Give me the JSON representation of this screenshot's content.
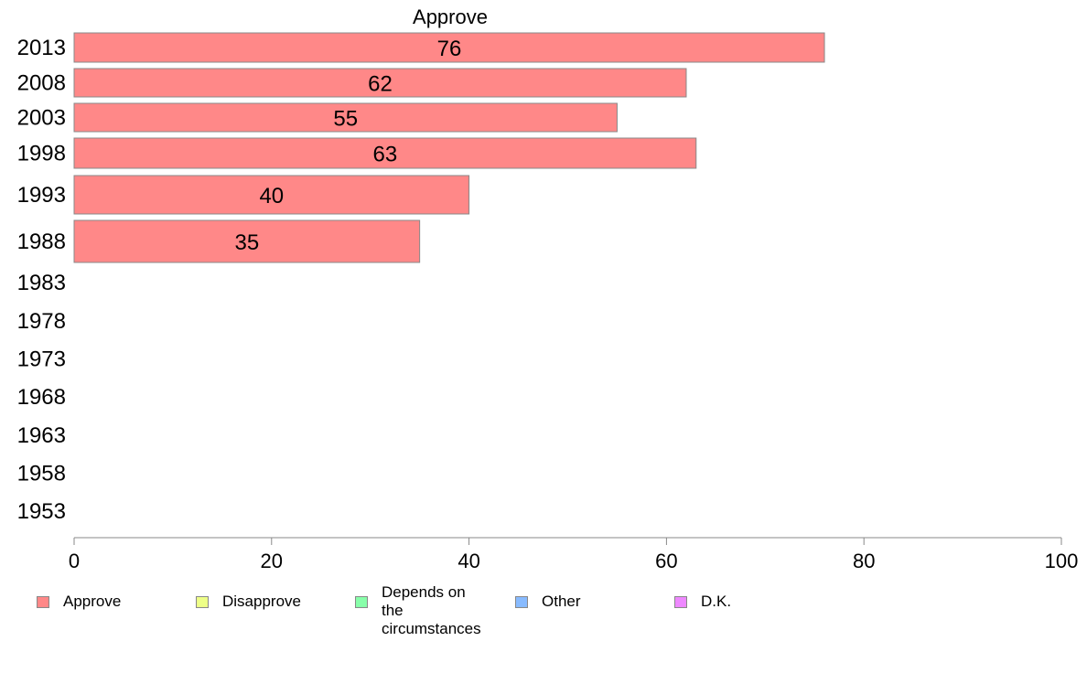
{
  "chart_data": {
    "type": "bar",
    "orientation": "horizontal",
    "title": "Approve",
    "xlabel": "",
    "ylabel": "",
    "xlim": [
      0,
      100
    ],
    "x_ticks": [
      "0",
      "20",
      "40",
      "60",
      "80",
      "100"
    ],
    "categories": [
      "2013",
      "2008",
      "2003",
      "1998",
      "1993",
      "1988",
      "1983",
      "1978",
      "1973",
      "1968",
      "1963",
      "1958",
      "1953"
    ],
    "series": [
      {
        "name": "Approve",
        "color": "#ff8888",
        "values": [
          76,
          62,
          55,
          63,
          40,
          35,
          null,
          null,
          null,
          null,
          null,
          null,
          null
        ],
        "labels": [
          "76",
          "62",
          "55",
          "63",
          "40",
          "35",
          "",
          "",
          "",
          "",
          "",
          "",
          ""
        ]
      }
    ],
    "legend": {
      "placement": "bottom",
      "entries": [
        {
          "label": "Approve",
          "color": "#ff8888"
        },
        {
          "label": "Disapprove",
          "color": "#eeff88"
        },
        {
          "label": "Depends on the\ncircumstances",
          "color": "#88ffaa"
        },
        {
          "label": "Other",
          "color": "#88bbff"
        },
        {
          "label": "D.K.",
          "color": "#ee88ff"
        }
      ]
    },
    "grid": false
  }
}
